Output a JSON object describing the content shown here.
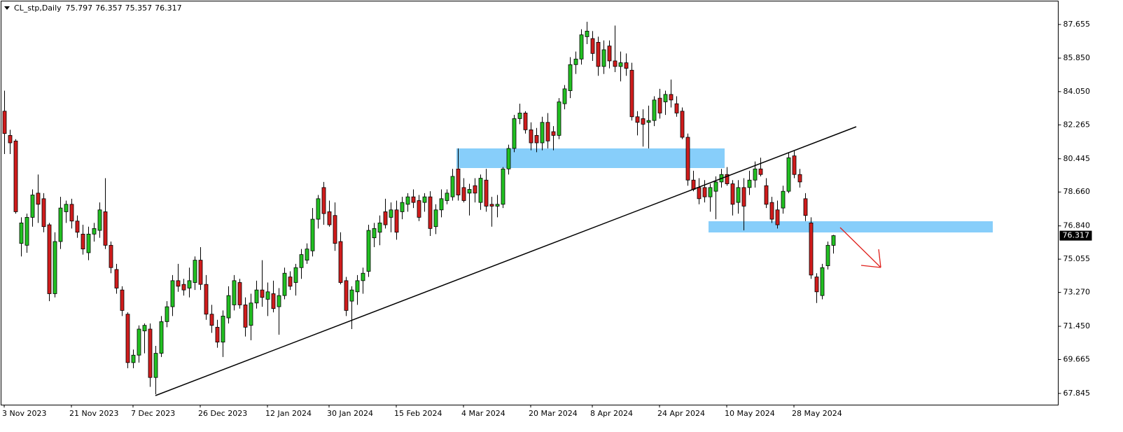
{
  "chart_data": {
    "type": "candlestick",
    "symbol": "CL_stp,Daily",
    "up_color": "#22c022",
    "down_color": "#d01c1c",
    "ylim": [
      67.24,
      88.97
    ],
    "yticks": [
      87.655,
      {
        "value": 85.85,
        "label": "85.850"
      },
      {
        "value": 84.05,
        "label": "84.050"
      },
      82.265,
      80.445,
      {
        "value": 78.66,
        "label": "78.660"
      },
      {
        "value": 76.84,
        "label": "76.840"
      },
      75.055,
      {
        "value": 73.27,
        "label": "73.270"
      },
      {
        "value": 71.45,
        "label": "71.450"
      },
      69.665,
      67.845
    ],
    "xticks": [
      {
        "value": 0,
        "label": "3 Nov 2023"
      },
      {
        "value": 12,
        "label": "21 Nov 2023"
      },
      {
        "value": 23,
        "label": "7 Dec 2023"
      },
      {
        "value": 35,
        "label": "26 Dec 2023"
      },
      {
        "value": 47,
        "label": "12 Jan 2024"
      },
      {
        "value": 58,
        "label": "30 Jan 2024"
      },
      {
        "value": 70,
        "label": "15 Feb 2024"
      },
      {
        "value": 82,
        "label": "4 Mar 2024"
      },
      {
        "value": 94,
        "label": "20 Mar 2024"
      },
      {
        "value": 105,
        "label": "8 Apr 2024"
      },
      {
        "value": 117,
        "label": "24 Apr 2024"
      },
      {
        "value": 129,
        "label": "10 May 2024"
      },
      {
        "value": 141,
        "label": "28 May 2024"
      }
    ],
    "open": [
      83.0,
      81.7,
      81.4,
      75.9,
      75.8,
      77.3,
      78.6,
      78.3,
      76.9,
      73.2,
      76.0,
      77.6,
      78.0,
      77.1,
      76.4,
      75.4,
      76.4,
      76.6,
      77.6,
      75.8,
      74.5,
      73.4,
      72.1,
      69.5,
      69.9,
      71.2,
      71.3,
      68.7,
      70.0,
      71.7,
      72.5,
      73.9,
      73.7,
      73.5,
      73.8,
      75.0,
      73.7,
      72.1,
      71.4,
      70.6,
      71.9,
      72.6,
      73.8,
      72.6,
      71.5,
      72.7,
      73.4,
      72.9,
      73.2,
      72.5,
      73.1,
      74.1,
      73.8,
      74.6,
      75.0,
      75.5,
      77.2,
      78.9,
      77.6,
      77.4,
      76.0,
      73.9,
      72.8,
      73.3,
      73.9,
      74.4,
      76.2,
      76.5,
      77.6,
      77.3,
      77.7,
      77.6,
      78.0,
      78.4,
      78.2,
      78.1,
      78.4,
      76.8,
      77.7,
      78.2,
      78.4,
      79.9,
      78.9,
      78.6,
      79.0,
      78.1,
      79.3,
      78.0,
      77.9,
      78.0,
      79.9,
      81.0,
      82.6,
      82.9,
      82.0,
      81.7,
      81.3,
      82.4,
      81.9,
      81.7,
      83.4,
      84.1,
      85.5,
      85.8,
      87.0,
      86.9,
      86.7,
      85.4,
      86.5,
      85.7,
      85.4,
      85.6,
      85.2,
      82.7,
      82.6,
      82.4,
      82.5,
      83.7,
      83.5,
      83.9,
      83.4,
      83.0,
      81.6,
      79.3,
      78.9,
      78.9,
      78.4,
      78.7,
      79.2,
      79.6,
      79.1,
      78.1,
      78.9,
      78.9,
      79.3,
      79.9,
      79.0,
      78.1,
      77.7,
      77.8,
      78.7,
      80.6,
      79.6,
      78.3,
      77.0,
      74.1,
      73.1,
      74.7,
      75.797
    ],
    "high": [
      84.1,
      82.0,
      81.5,
      77.3,
      77.5,
      78.8,
      79.6,
      78.6,
      77.0,
      76.5,
      78.4,
      78.2,
      78.3,
      77.4,
      76.9,
      76.8,
      77.0,
      78.1,
      79.4,
      76.0,
      74.8,
      73.6,
      72.2,
      70.2,
      71.5,
      71.6,
      71.6,
      70.4,
      72.0,
      72.8,
      74.2,
      74.8,
      74.0,
      74.6,
      75.2,
      75.7,
      74.2,
      72.6,
      71.8,
      72.3,
      73.6,
      74.2,
      74.0,
      73.0,
      73.2,
      73.9,
      75.0,
      73.8,
      73.9,
      73.5,
      74.6,
      74.4,
      74.8,
      75.6,
      75.9,
      77.8,
      78.5,
      79.2,
      78.2,
      78.1,
      76.5,
      74.1,
      73.6,
      74.2,
      74.6,
      76.9,
      77.0,
      77.4,
      78.3,
      78.1,
      78.2,
      78.4,
      78.6,
      78.8,
      78.5,
      78.6,
      78.7,
      78.0,
      78.8,
      78.8,
      79.9,
      81.0,
      79.4,
      79.1,
      79.4,
      79.6,
      79.9,
      78.4,
      78.5,
      80.0,
      81.2,
      82.8,
      83.4,
      83.0,
      82.4,
      82.1,
      82.7,
      82.9,
      82.2,
      83.7,
      84.4,
      85.9,
      86.2,
      87.4,
      87.8,
      87.3,
      87.0,
      86.8,
      86.8,
      87.6,
      86.2,
      86.1,
      85.6,
      83.0,
      83.1,
      83.3,
      83.8,
      84.2,
      84.1,
      84.7,
      83.8,
      83.2,
      81.8,
      79.8,
      79.4,
      79.3,
      79.1,
      79.5,
      79.9,
      80.0,
      79.3,
      79.3,
      79.4,
      79.8,
      80.3,
      80.5,
      79.4,
      78.4,
      78.2,
      79.0,
      80.8,
      80.9,
      79.9,
      78.6,
      77.3,
      74.3,
      74.8,
      76.0,
      76.357
    ],
    "low": [
      80.7,
      80.7,
      77.5,
      75.2,
      75.4,
      76.8,
      77.0,
      76.5,
      72.8,
      73.0,
      75.6,
      77.0,
      76.7,
      76.2,
      75.3,
      75.0,
      76.0,
      76.2,
      75.6,
      74.3,
      73.2,
      72.0,
      69.2,
      69.2,
      69.5,
      70.0,
      68.2,
      67.8,
      69.8,
      71.4,
      72.0,
      73.3,
      73.1,
      73.0,
      73.4,
      73.4,
      71.8,
      71.1,
      70.3,
      69.8,
      71.6,
      72.3,
      72.4,
      70.9,
      70.7,
      72.4,
      72.5,
      72.0,
      72.2,
      71.0,
      72.9,
      73.4,
      73.1,
      74.0,
      74.8,
      75.2,
      76.7,
      76.9,
      76.8,
      75.5,
      73.7,
      72.0,
      71.3,
      72.6,
      73.2,
      74.1,
      75.7,
      75.8,
      76.7,
      76.5,
      76.1,
      77.2,
      77.6,
      77.8,
      77.1,
      77.6,
      76.3,
      76.4,
      77.3,
      78.0,
      78.2,
      78.2,
      78.1,
      77.4,
      78.1,
      77.7,
      77.6,
      76.8,
      77.3,
      77.8,
      79.6,
      80.8,
      82.3,
      81.8,
      80.9,
      80.8,
      80.9,
      81.0,
      80.9,
      81.5,
      83.1,
      83.7,
      85.0,
      85.5,
      86.6,
      85.7,
      84.9,
      85.0,
      85.3,
      85.1,
      84.6,
      84.9,
      82.5,
      81.7,
      81.1,
      81.0,
      82.2,
      82.6,
      82.8,
      83.2,
      82.7,
      81.5,
      79.0,
      78.7,
      78.0,
      78.1,
      77.6,
      77.2,
      78.9,
      79.0,
      77.4,
      77.5,
      76.6,
      78.5,
      78.9,
      79.5,
      77.8,
      77.0,
      76.7,
      77.5,
      78.6,
      79.4,
      78.9,
      77.1,
      74.0,
      72.7,
      72.9,
      74.5,
      75.357
    ],
    "close": [
      81.8,
      81.3,
      77.6,
      77.0,
      77.3,
      78.5,
      78.0,
      76.8,
      73.2,
      76.0,
      77.8,
      78.0,
      77.1,
      76.5,
      75.6,
      76.4,
      76.7,
      77.7,
      75.8,
      74.6,
      73.5,
      72.3,
      69.5,
      69.9,
      71.3,
      71.5,
      68.7,
      70.0,
      71.7,
      72.5,
      73.9,
      73.6,
      73.4,
      73.9,
      75.0,
      73.7,
      72.1,
      71.5,
      70.6,
      72.0,
      73.1,
      73.9,
      72.6,
      71.4,
      72.7,
      73.4,
      73.0,
      73.3,
      72.4,
      73.1,
      74.3,
      73.6,
      74.6,
      75.3,
      75.6,
      77.2,
      78.3,
      77.5,
      76.9,
      75.9,
      73.8,
      72.3,
      73.4,
      73.9,
      74.3,
      76.6,
      76.7,
      77.0,
      76.9,
      77.7,
      76.5,
      78.1,
      78.4,
      78.1,
      77.3,
      78.4,
      76.7,
      77.7,
      78.3,
      78.6,
      79.5,
      78.5,
      78.2,
      78.8,
      78.6,
      79.4,
      77.9,
      77.9,
      78.0,
      79.9,
      81.0,
      82.6,
      82.9,
      82.0,
      81.3,
      81.3,
      82.4,
      81.4,
      81.7,
      83.5,
      84.2,
      85.5,
      85.8,
      87.1,
      87.3,
      86.1,
      85.4,
      86.3,
      85.7,
      85.4,
      85.6,
      85.3,
      82.7,
      82.4,
      82.3,
      82.5,
      83.6,
      82.9,
      83.9,
      83.6,
      82.9,
      81.6,
      79.3,
      78.8,
      78.3,
      78.4,
      78.9,
      79.2,
      79.6,
      79.1,
      78.0,
      78.9,
      77.9,
      79.3,
      79.9,
      79.6,
      78.0,
      77.2,
      76.9,
      78.7,
      80.5,
      79.6,
      79.2,
      77.4,
      74.2,
      73.3,
      74.6,
      75.8,
      76.317
    ]
  }
}
